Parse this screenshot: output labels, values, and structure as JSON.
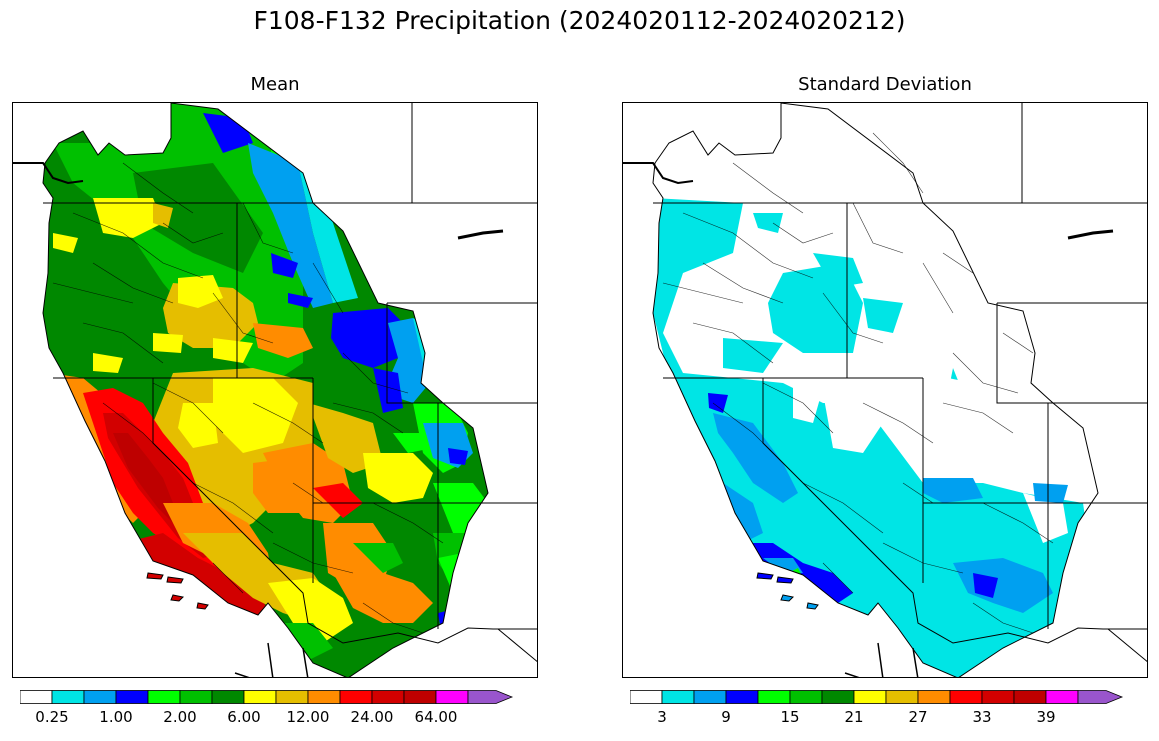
{
  "title": "F108-F132 Precipitation (2024020112-2024020212)",
  "panels": [
    {
      "title": "Mean",
      "colorbar": {
        "colors": [
          "#ffffff",
          "#00e5e5",
          "#00a0f0",
          "#0000ff",
          "#00ff00",
          "#00c000",
          "#008800",
          "#ffff00",
          "#e5be00",
          "#ff8c00",
          "#ff0000",
          "#d20000",
          "#be0000",
          "#ff00ff",
          "#9955cc"
        ],
        "tick_labels": [
          "0.25",
          "1.00",
          "2.00",
          "6.00",
          "12.00",
          "24.00",
          "64.00"
        ]
      }
    },
    {
      "title": "Standard Deviation",
      "colorbar": {
        "colors": [
          "#ffffff",
          "#00e5e5",
          "#00a0f0",
          "#0000ff",
          "#00ff00",
          "#00c000",
          "#008800",
          "#ffff00",
          "#e5be00",
          "#ff8c00",
          "#ff0000",
          "#d20000",
          "#be0000",
          "#ff00ff",
          "#9955cc"
        ],
        "tick_labels": [
          "3",
          "9",
          "15",
          "21",
          "27",
          "33",
          "39"
        ]
      }
    }
  ]
}
